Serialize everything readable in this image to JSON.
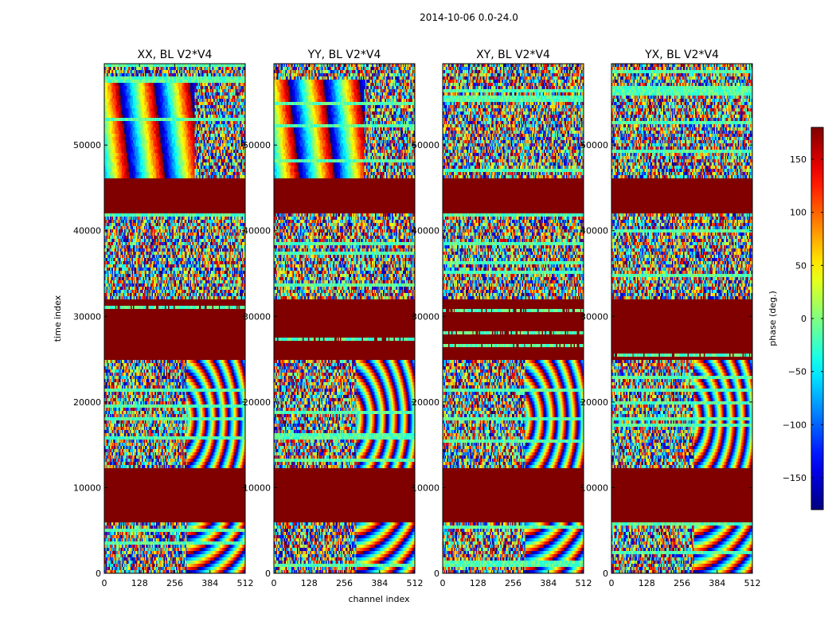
{
  "suptitle": "2014-10-06 0.0-24.0",
  "chart_data": [
    {
      "type": "heatmap",
      "title": "XX, BL V2*V4",
      "xlabel": "channel index",
      "ylabel": "time index",
      "xlim": [
        0,
        512
      ],
      "ylim": [
        0,
        59500
      ],
      "xticks": [
        0,
        128,
        256,
        384,
        512
      ],
      "yticks": [
        0,
        10000,
        20000,
        30000,
        40000,
        50000
      ],
      "value": "phase (deg.)",
      "zlim": [
        -180,
        180
      ],
      "flagged_regions": [
        [
          42000,
          46000
        ],
        [
          24800,
          32100
        ],
        [
          6000,
          12400
        ]
      ]
    },
    {
      "type": "heatmap",
      "title": "YY, BL V2*V4",
      "xlabel": "channel index",
      "xlim": [
        0,
        512
      ],
      "ylim": [
        0,
        59500
      ],
      "xticks": [
        0,
        128,
        256,
        384,
        512
      ],
      "yticks": [
        0,
        10000,
        20000,
        30000,
        40000,
        50000
      ],
      "value": "phase (deg.)",
      "zlim": [
        -180,
        180
      ],
      "flagged_regions": [
        [
          42000,
          46000
        ],
        [
          24800,
          32100
        ],
        [
          6000,
          12400
        ]
      ]
    },
    {
      "type": "heatmap",
      "title": "XY, BL V2*V4",
      "xlim": [
        0,
        512
      ],
      "ylim": [
        0,
        59500
      ],
      "xticks": [
        0,
        128,
        256,
        384,
        512
      ],
      "yticks": [
        0,
        10000,
        20000,
        30000,
        40000,
        50000
      ],
      "value": "phase (deg.)",
      "zlim": [
        -180,
        180
      ],
      "flagged_regions": [
        [
          42000,
          46000
        ],
        [
          24800,
          32100
        ],
        [
          6000,
          12400
        ]
      ]
    },
    {
      "type": "heatmap",
      "title": "YX, BL V2*V4",
      "xlim": [
        0,
        512
      ],
      "ylim": [
        0,
        59500
      ],
      "xticks": [
        0,
        128,
        256,
        384,
        512
      ],
      "yticks": [
        0,
        10000,
        20000,
        30000,
        40000,
        50000
      ],
      "value": "phase (deg.)",
      "zlim": [
        -180,
        180
      ],
      "flagged_regions": [
        [
          42000,
          46000
        ],
        [
          24800,
          32100
        ],
        [
          6000,
          12400
        ]
      ]
    }
  ],
  "colorbar": {
    "label": "phase (deg.)",
    "range": [
      -180,
      180
    ],
    "ticks": [
      150,
      100,
      50,
      0,
      -50,
      -100,
      -150
    ],
    "tick_labels": [
      "150",
      "100",
      "50",
      "0",
      "−50",
      "−100",
      "−150"
    ]
  }
}
